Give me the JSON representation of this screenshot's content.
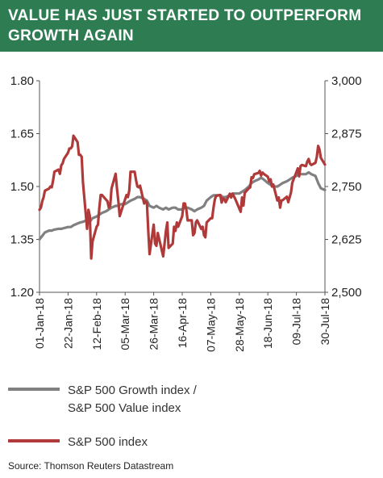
{
  "header": {
    "title_line1": "VALUE HAS JUST STARTED TO OUTPERFORM",
    "title_line2": "GROWTH AGAIN"
  },
  "colors": {
    "banner": "#2e7d52",
    "ratio_series": "#808080",
    "index_series": "#b03a3a"
  },
  "legend": {
    "ratio_line1": "S&P 500 Growth index /",
    "ratio_line2": "S&P 500 Value index",
    "index": "S&P 500 index"
  },
  "source": "Source: Thomson Reuters Datastream",
  "chart_data": {
    "type": "line",
    "x_tick_labels": [
      "01-Jan-18",
      "22-Jan-18",
      "12-Feb-18",
      "05-Mar-18",
      "26-Mar-18",
      "16-Apr-18",
      "07-May-18",
      "28-May-18",
      "18-Jun-18",
      "09-Jul-18",
      "30-Jul-18"
    ],
    "y_left": {
      "min": 1.2,
      "max": 1.8,
      "ticks": [
        "1.20",
        "1.35",
        "1.50",
        "1.65",
        "1.80"
      ]
    },
    "y_right": {
      "min": 2500,
      "max": 3000,
      "ticks": [
        "2,500",
        "2,625",
        "2,750",
        "2,875",
        "3,000"
      ]
    },
    "grid": false,
    "legend_position": "bottom",
    "series": [
      {
        "name": "S&P 500 Growth index / S&P 500 Value index",
        "axis": "left",
        "values": [
          [
            "2018-01-01",
            1.35
          ],
          [
            "2018-01-03",
            1.36
          ],
          [
            "2018-01-05",
            1.37
          ],
          [
            "2018-01-08",
            1.375
          ],
          [
            "2018-01-10",
            1.375
          ],
          [
            "2018-01-12",
            1.378
          ],
          [
            "2018-01-15",
            1.38
          ],
          [
            "2018-01-17",
            1.38
          ],
          [
            "2018-01-19",
            1.382
          ],
          [
            "2018-01-22",
            1.385
          ],
          [
            "2018-01-24",
            1.385
          ],
          [
            "2018-01-26",
            1.39
          ],
          [
            "2018-01-29",
            1.395
          ],
          [
            "2018-01-31",
            1.398
          ],
          [
            "2018-02-02",
            1.4
          ],
          [
            "2018-02-05",
            1.405
          ],
          [
            "2018-02-07",
            1.4
          ],
          [
            "2018-02-09",
            1.41
          ],
          [
            "2018-02-12",
            1.415
          ],
          [
            "2018-02-14",
            1.42
          ],
          [
            "2018-02-16",
            1.425
          ],
          [
            "2018-02-19",
            1.43
          ],
          [
            "2018-02-21",
            1.435
          ],
          [
            "2018-02-23",
            1.44
          ],
          [
            "2018-02-26",
            1.445
          ],
          [
            "2018-02-28",
            1.445
          ],
          [
            "2018-03-02",
            1.45
          ],
          [
            "2018-03-05",
            1.45
          ],
          [
            "2018-03-07",
            1.455
          ],
          [
            "2018-03-09",
            1.46
          ],
          [
            "2018-03-12",
            1.465
          ],
          [
            "2018-03-14",
            1.47
          ],
          [
            "2018-03-16",
            1.47
          ],
          [
            "2018-03-19",
            1.465
          ],
          [
            "2018-03-21",
            1.46
          ],
          [
            "2018-03-23",
            1.445
          ],
          [
            "2018-03-26",
            1.44
          ],
          [
            "2018-03-28",
            1.445
          ],
          [
            "2018-03-30",
            1.44
          ],
          [
            "2018-04-02",
            1.435
          ],
          [
            "2018-04-04",
            1.44
          ],
          [
            "2018-04-06",
            1.435
          ],
          [
            "2018-04-09",
            1.44
          ],
          [
            "2018-04-11",
            1.44
          ],
          [
            "2018-04-13",
            1.435
          ],
          [
            "2018-04-16",
            1.435
          ],
          [
            "2018-04-18",
            1.44
          ],
          [
            "2018-04-20",
            1.44
          ],
          [
            "2018-04-23",
            1.435
          ],
          [
            "2018-04-25",
            1.43
          ],
          [
            "2018-04-27",
            1.435
          ],
          [
            "2018-04-30",
            1.44
          ],
          [
            "2018-05-02",
            1.445
          ],
          [
            "2018-05-04",
            1.46
          ],
          [
            "2018-05-07",
            1.47
          ],
          [
            "2018-05-09",
            1.475
          ],
          [
            "2018-05-11",
            1.475
          ],
          [
            "2018-05-14",
            1.475
          ],
          [
            "2018-05-16",
            1.47
          ],
          [
            "2018-05-18",
            1.47
          ],
          [
            "2018-05-21",
            1.475
          ],
          [
            "2018-05-23",
            1.48
          ],
          [
            "2018-05-25",
            1.48
          ],
          [
            "2018-05-28",
            1.48
          ],
          [
            "2018-05-30",
            1.485
          ],
          [
            "2018-06-01",
            1.49
          ],
          [
            "2018-06-04",
            1.5
          ],
          [
            "2018-06-06",
            1.51
          ],
          [
            "2018-06-08",
            1.515
          ],
          [
            "2018-06-11",
            1.52
          ],
          [
            "2018-06-13",
            1.525
          ],
          [
            "2018-06-15",
            1.52
          ],
          [
            "2018-06-18",
            1.51
          ],
          [
            "2018-06-20",
            1.505
          ],
          [
            "2018-06-22",
            1.5
          ],
          [
            "2018-06-25",
            1.5
          ],
          [
            "2018-06-27",
            1.505
          ],
          [
            "2018-06-29",
            1.51
          ],
          [
            "2018-07-02",
            1.515
          ],
          [
            "2018-07-04",
            1.52
          ],
          [
            "2018-07-06",
            1.525
          ],
          [
            "2018-07-09",
            1.53
          ],
          [
            "2018-07-11",
            1.535
          ],
          [
            "2018-07-13",
            1.535
          ],
          [
            "2018-07-16",
            1.535
          ],
          [
            "2018-07-18",
            1.54
          ],
          [
            "2018-07-20",
            1.535
          ],
          [
            "2018-07-23",
            1.53
          ],
          [
            "2018-07-25",
            1.51
          ],
          [
            "2018-07-27",
            1.495
          ],
          [
            "2018-07-30",
            1.49
          ]
        ]
      },
      {
        "name": "S&P 500 index",
        "axis": "right",
        "values": [
          [
            "2018-01-01",
            2695
          ],
          [
            "2018-01-02",
            2700
          ],
          [
            "2018-01-03",
            2715
          ],
          [
            "2018-01-04",
            2725
          ],
          [
            "2018-01-05",
            2740
          ],
          [
            "2018-01-08",
            2745
          ],
          [
            "2018-01-09",
            2750
          ],
          [
            "2018-01-10",
            2748
          ],
          [
            "2018-01-11",
            2765
          ],
          [
            "2018-01-12",
            2785
          ],
          [
            "2018-01-15",
            2790
          ],
          [
            "2018-01-16",
            2780
          ],
          [
            "2018-01-17",
            2800
          ],
          [
            "2018-01-18",
            2805
          ],
          [
            "2018-01-19",
            2815
          ],
          [
            "2018-01-22",
            2830
          ],
          [
            "2018-01-23",
            2840
          ],
          [
            "2018-01-24",
            2840
          ],
          [
            "2018-01-25",
            2845
          ],
          [
            "2018-01-26",
            2870
          ],
          [
            "2018-01-29",
            2855
          ],
          [
            "2018-01-30",
            2825
          ],
          [
            "2018-01-31",
            2825
          ],
          [
            "2018-02-01",
            2820
          ],
          [
            "2018-02-02",
            2760
          ],
          [
            "2018-02-05",
            2650
          ],
          [
            "2018-02-06",
            2695
          ],
          [
            "2018-02-07",
            2680
          ],
          [
            "2018-02-08",
            2580
          ],
          [
            "2018-02-09",
            2620
          ],
          [
            "2018-02-12",
            2655
          ],
          [
            "2018-02-13",
            2660
          ],
          [
            "2018-02-14",
            2700
          ],
          [
            "2018-02-15",
            2730
          ],
          [
            "2018-02-16",
            2730
          ],
          [
            "2018-02-20",
            2715
          ],
          [
            "2018-02-21",
            2700
          ],
          [
            "2018-02-22",
            2705
          ],
          [
            "2018-02-23",
            2745
          ],
          [
            "2018-02-26",
            2780
          ],
          [
            "2018-02-27",
            2745
          ],
          [
            "2018-02-28",
            2715
          ],
          [
            "2018-03-01",
            2680
          ],
          [
            "2018-03-02",
            2690
          ],
          [
            "2018-03-05",
            2720
          ],
          [
            "2018-03-06",
            2730
          ],
          [
            "2018-03-07",
            2725
          ],
          [
            "2018-03-08",
            2740
          ],
          [
            "2018-03-09",
            2785
          ],
          [
            "2018-03-12",
            2785
          ],
          [
            "2018-03-13",
            2765
          ],
          [
            "2018-03-14",
            2750
          ],
          [
            "2018-03-15",
            2748
          ],
          [
            "2018-03-16",
            2752
          ],
          [
            "2018-03-19",
            2710
          ],
          [
            "2018-03-20",
            2715
          ],
          [
            "2018-03-21",
            2712
          ],
          [
            "2018-03-22",
            2645
          ],
          [
            "2018-03-23",
            2590
          ],
          [
            "2018-03-26",
            2660
          ],
          [
            "2018-03-27",
            2615
          ],
          [
            "2018-03-28",
            2610
          ],
          [
            "2018-03-29",
            2640
          ],
          [
            "2018-04-02",
            2585
          ],
          [
            "2018-04-03",
            2615
          ],
          [
            "2018-04-04",
            2645
          ],
          [
            "2018-04-05",
            2665
          ],
          [
            "2018-04-06",
            2605
          ],
          [
            "2018-04-09",
            2615
          ],
          [
            "2018-04-10",
            2655
          ],
          [
            "2018-04-11",
            2645
          ],
          [
            "2018-04-12",
            2665
          ],
          [
            "2018-04-13",
            2655
          ],
          [
            "2018-04-16",
            2680
          ],
          [
            "2018-04-17",
            2710
          ],
          [
            "2018-04-18",
            2710
          ],
          [
            "2018-04-19",
            2695
          ],
          [
            "2018-04-20",
            2670
          ],
          [
            "2018-04-23",
            2670
          ],
          [
            "2018-04-24",
            2635
          ],
          [
            "2018-04-25",
            2640
          ],
          [
            "2018-04-26",
            2665
          ],
          [
            "2018-04-27",
            2670
          ],
          [
            "2018-04-30",
            2650
          ],
          [
            "2018-05-01",
            2655
          ],
          [
            "2018-05-02",
            2635
          ],
          [
            "2018-05-03",
            2630
          ],
          [
            "2018-05-04",
            2665
          ],
          [
            "2018-05-07",
            2675
          ],
          [
            "2018-05-08",
            2675
          ],
          [
            "2018-05-09",
            2700
          ],
          [
            "2018-05-10",
            2720
          ],
          [
            "2018-05-11",
            2728
          ],
          [
            "2018-05-14",
            2730
          ],
          [
            "2018-05-15",
            2712
          ],
          [
            "2018-05-16",
            2722
          ],
          [
            "2018-05-17",
            2720
          ],
          [
            "2018-05-18",
            2713
          ],
          [
            "2018-05-21",
            2733
          ],
          [
            "2018-05-22",
            2724
          ],
          [
            "2018-05-23",
            2733
          ],
          [
            "2018-05-24",
            2727
          ],
          [
            "2018-05-25",
            2721
          ],
          [
            "2018-05-29",
            2690
          ],
          [
            "2018-05-30",
            2724
          ],
          [
            "2018-05-31",
            2705
          ],
          [
            "2018-06-01",
            2735
          ],
          [
            "2018-06-04",
            2746
          ],
          [
            "2018-06-05",
            2748
          ],
          [
            "2018-06-06",
            2772
          ],
          [
            "2018-06-07",
            2770
          ],
          [
            "2018-06-08",
            2779
          ],
          [
            "2018-06-11",
            2782
          ],
          [
            "2018-06-12",
            2787
          ],
          [
            "2018-06-13",
            2776
          ],
          [
            "2018-06-14",
            2783
          ],
          [
            "2018-06-15",
            2780
          ],
          [
            "2018-06-18",
            2773
          ],
          [
            "2018-06-19",
            2762
          ],
          [
            "2018-06-20",
            2767
          ],
          [
            "2018-06-21",
            2750
          ],
          [
            "2018-06-22",
            2755
          ],
          [
            "2018-06-25",
            2717
          ],
          [
            "2018-06-26",
            2724
          ],
          [
            "2018-06-27",
            2700
          ],
          [
            "2018-06-28",
            2717
          ],
          [
            "2018-06-29",
            2718
          ],
          [
            "2018-07-02",
            2726
          ],
          [
            "2018-07-03",
            2713
          ],
          [
            "2018-07-05",
            2736
          ],
          [
            "2018-07-06",
            2759
          ],
          [
            "2018-07-09",
            2784
          ],
          [
            "2018-07-10",
            2793
          ],
          [
            "2018-07-11",
            2774
          ],
          [
            "2018-07-12",
            2798
          ],
          [
            "2018-07-13",
            2801
          ],
          [
            "2018-07-16",
            2798
          ],
          [
            "2018-07-17",
            2809
          ],
          [
            "2018-07-18",
            2815
          ],
          [
            "2018-07-19",
            2804
          ],
          [
            "2018-07-20",
            2801
          ],
          [
            "2018-07-23",
            2806
          ],
          [
            "2018-07-24",
            2820
          ],
          [
            "2018-07-25",
            2846
          ],
          [
            "2018-07-26",
            2837
          ],
          [
            "2018-07-27",
            2818
          ],
          [
            "2018-07-30",
            2802
          ]
        ]
      }
    ]
  }
}
